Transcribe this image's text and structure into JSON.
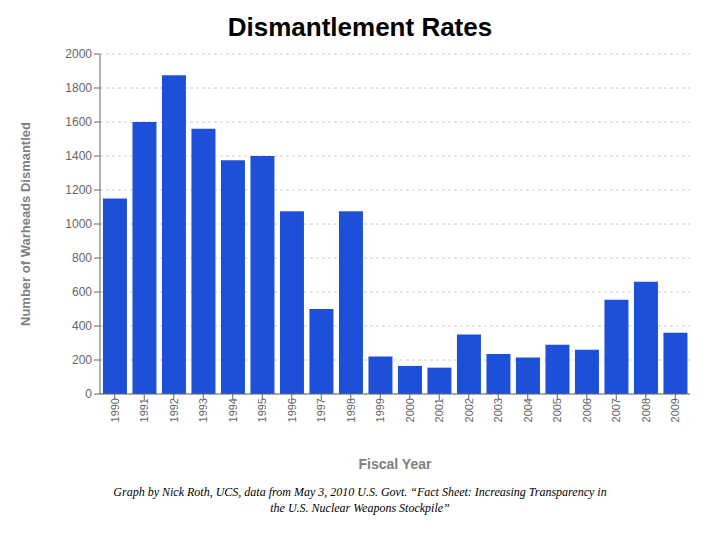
{
  "chart_data": {
    "type": "bar",
    "title": "Dismantlement Rates",
    "xlabel": "Fiscal Year",
    "ylabel": "Number of Warheads Dismantled",
    "caption": "Graph by Nick Roth, UCS, data from May 3, 2010 U.S. Govt. “Fact Sheet: Increasing Transparency in\nthe U.S. Nuclear Weapons Stockpile”",
    "categories": [
      "1990",
      "1991",
      "1992",
      "1993",
      "1994",
      "1995",
      "1996",
      "1997",
      "1998",
      "1999",
      "2000",
      "2001",
      "2002",
      "2003",
      "2004",
      "2005",
      "2006",
      "2007",
      "2008",
      "2009"
    ],
    "values": [
      1150,
      1600,
      1875,
      1560,
      1375,
      1400,
      1075,
      500,
      1075,
      220,
      165,
      155,
      350,
      235,
      215,
      290,
      260,
      555,
      660,
      360
    ],
    "color": "#1e4fd8",
    "ylim": [
      0,
      2000
    ],
    "yticks": [
      0,
      200,
      400,
      600,
      800,
      1000,
      1200,
      1400,
      1600,
      1800,
      2000
    ],
    "grid": true
  }
}
